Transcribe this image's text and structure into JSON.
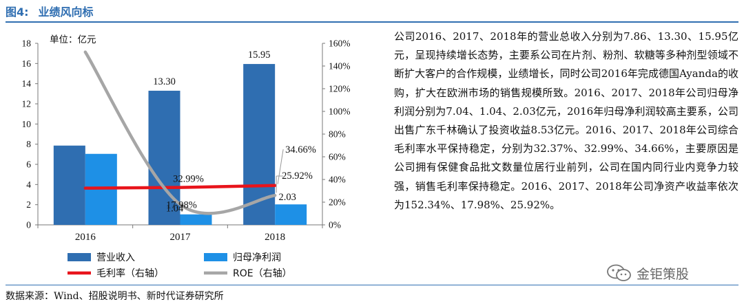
{
  "figure": {
    "number": "图4:",
    "title": "业绩风向标"
  },
  "chart_data": {
    "type": "bar",
    "unit_label": "单位：亿元",
    "categories": [
      "2016",
      "2017",
      "2018"
    ],
    "y_left": {
      "min": 0,
      "max": 18,
      "ticks": [
        "0",
        "2",
        "4",
        "6",
        "8",
        "10",
        "12",
        "14",
        "16",
        "18"
      ]
    },
    "y_right": {
      "min": 0,
      "max": 160,
      "ticks": [
        "0%",
        "20%",
        "40%",
        "60%",
        "80%",
        "100%",
        "120%",
        "140%",
        "160%"
      ]
    },
    "grid": false,
    "legend_position": "bottom",
    "series": [
      {
        "name": "营业收入",
        "kind": "bar",
        "axis": "left",
        "color": "#2f6eb1",
        "values": [
          7.86,
          13.3,
          15.95
        ],
        "labels": [
          "",
          "13.30",
          "15.95"
        ]
      },
      {
        "name": "归母净利润",
        "kind": "bar",
        "axis": "left",
        "color": "#1e90e6",
        "values": [
          7.04,
          1.04,
          2.03
        ],
        "labels": [
          "",
          "1.04",
          "2.03"
        ]
      },
      {
        "name": "毛利率（右轴）",
        "kind": "line",
        "axis": "right",
        "color": "#e8141b",
        "values": [
          32.37,
          32.99,
          34.66
        ],
        "labels": [
          "",
          "32.99%",
          "34.66%"
        ]
      },
      {
        "name": "ROE（右轴）",
        "kind": "line",
        "axis": "right",
        "color": "#a6a6a6",
        "values": [
          152.34,
          17.98,
          25.92
        ],
        "labels": [
          "",
          "17.98%",
          "25.92%"
        ]
      }
    ]
  },
  "description": "公司2016、2017、2018年的营业总收入分别为7.86、13.30、15.95亿元，呈现持续增长态势，主要系公司在片剂、粉剂、软糖等多种剂型领域不断扩大客户的合作规模，业绩增长，同时公司2016年完成德国Ayanda的收购，扩大在欧洲市场的销售规模所致。2016、2017、2018年公司归母净利润分别为7.04、1.04、2.03亿元，2016年归母净利润较高主要系，公司出售广东千林确认了投资收益8.53亿元。2016、2017、2018年公司综合毛利率水平保持稳定，分别为32.37%、32.99%、34.66%，主要原因是公司拥有保健食品批文数量位居行业前列，公司在国内同行业内竞争力较强，销售毛利率保持稳定。2016、2017、2018年公司净资产收益率依次为152.34%、17.98%、25.92%。",
  "source": "数据来源：Wind、招股说明书、新时代证券研究所",
  "watermark": {
    "icon": "wechat-icon",
    "text": "金钜策股"
  }
}
